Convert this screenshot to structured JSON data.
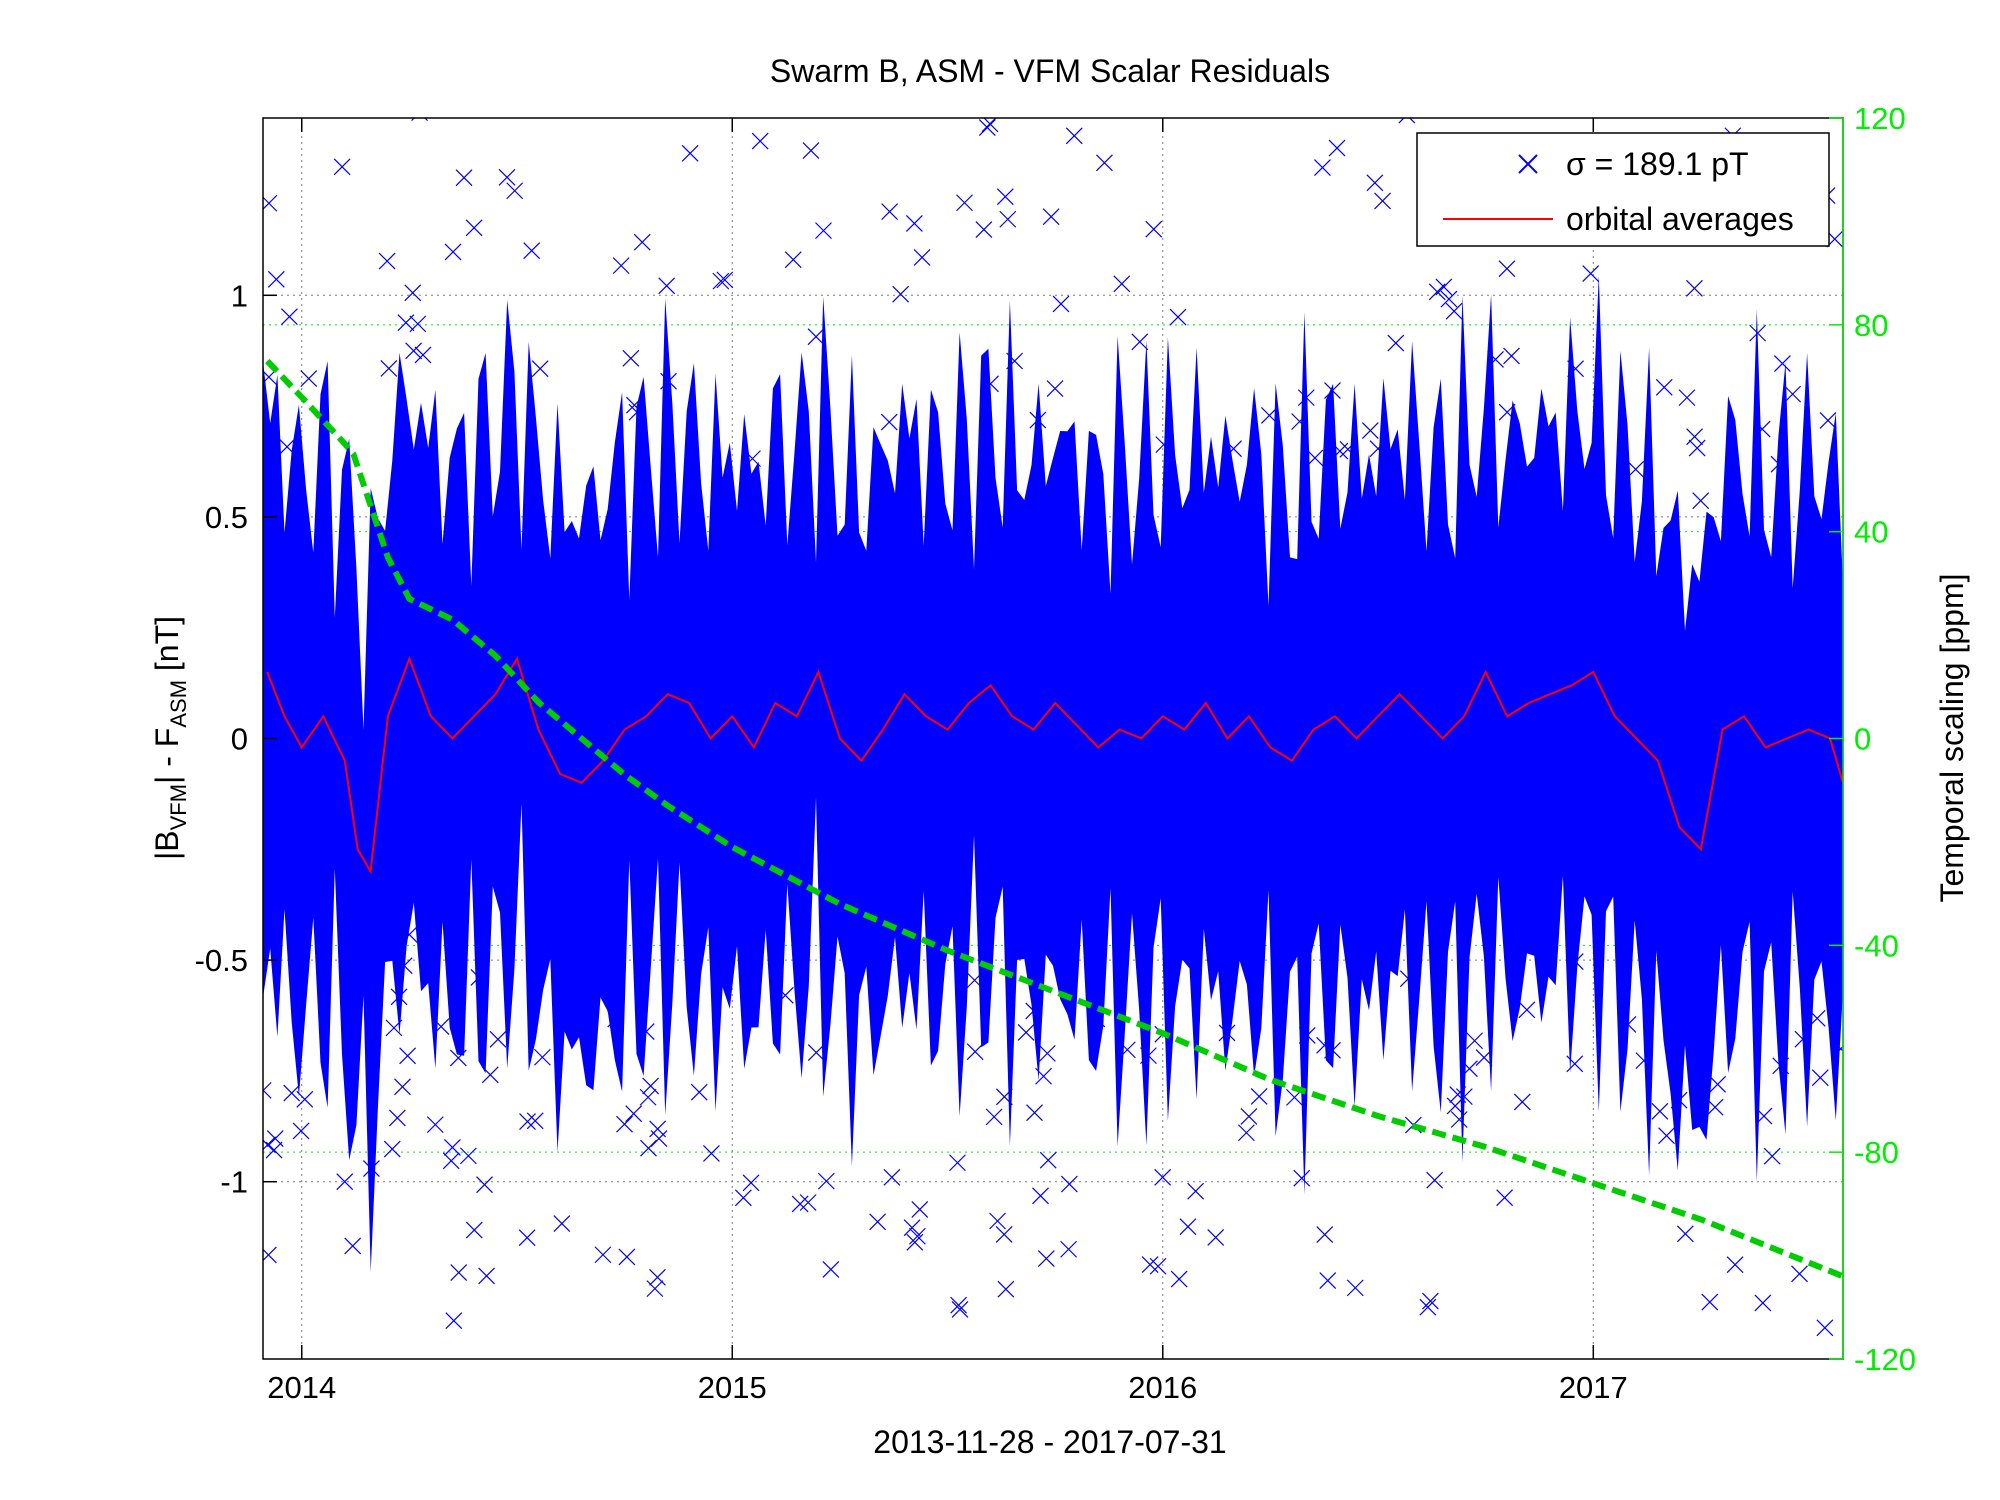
{
  "chart_data": {
    "type": "scatter",
    "title": "Swarm B, ASM - VFM Scalar Residuals",
    "xlabel": "2013-11-28 - 2017-07-31",
    "ylabel": {
      "pre": "|B",
      "sub1": "VFM",
      "mid": "| - F",
      "sub2": "ASM",
      "post": " [nT]"
    },
    "y2label": "Temporal scaling [ppm]",
    "xlim": [
      2013.91,
      2017.58
    ],
    "ylim": [
      -1.4,
      1.4
    ],
    "y2lim": [
      -120,
      120
    ],
    "x_ticks": [
      2014,
      2015,
      2016,
      2017
    ],
    "x_tick_labels": [
      "2014",
      "2015",
      "2016",
      "2017"
    ],
    "y_ticks": [
      -1,
      -0.5,
      0,
      0.5,
      1
    ],
    "y_tick_labels": [
      "-1",
      "-0.5",
      "0",
      "0.5",
      "1"
    ],
    "y2_ticks": [
      -120,
      -80,
      -40,
      0,
      40,
      80,
      120
    ],
    "y2_tick_labels": [
      "-120",
      "-80",
      "-40",
      "0",
      "40",
      "80",
      "120"
    ],
    "grid": true,
    "legend_position": "top-right",
    "series": [
      {
        "name": "σ = 189.1 pT",
        "kind": "scatter",
        "marker": "x",
        "color": "#0000ff",
        "sigma_nT": 0.1891
      },
      {
        "name": "orbital averages",
        "kind": "line",
        "color": "#ff0000",
        "x": [
          2013.92,
          2013.96,
          2014.0,
          2014.05,
          2014.1,
          2014.13,
          2014.16,
          2014.2,
          2014.25,
          2014.3,
          2014.35,
          2014.4,
          2014.45,
          2014.5,
          2014.55,
          2014.6,
          2014.65,
          2014.7,
          2014.75,
          2014.8,
          2014.85,
          2014.9,
          2014.95,
          2015.0,
          2015.05,
          2015.1,
          2015.15,
          2015.2,
          2015.25,
          2015.3,
          2015.35,
          2015.4,
          2015.45,
          2015.5,
          2015.55,
          2015.6,
          2015.65,
          2015.7,
          2015.75,
          2015.8,
          2015.85,
          2015.9,
          2015.95,
          2016.0,
          2016.05,
          2016.1,
          2016.15,
          2016.2,
          2016.25,
          2016.3,
          2016.35,
          2016.4,
          2016.45,
          2016.5,
          2016.55,
          2016.6,
          2016.65,
          2016.7,
          2016.75,
          2016.8,
          2016.85,
          2016.9,
          2016.95,
          2017.0,
          2017.05,
          2017.1,
          2017.15,
          2017.2,
          2017.25,
          2017.3,
          2017.35,
          2017.4,
          2017.45,
          2017.5,
          2017.55,
          2017.58
        ],
        "y": [
          0.15,
          0.05,
          -0.02,
          0.05,
          -0.05,
          -0.25,
          -0.3,
          0.05,
          0.18,
          0.05,
          0.0,
          0.05,
          0.1,
          0.18,
          0.02,
          -0.08,
          -0.1,
          -0.05,
          0.02,
          0.05,
          0.1,
          0.08,
          0.0,
          0.05,
          -0.02,
          0.08,
          0.05,
          0.15,
          0.0,
          -0.05,
          0.02,
          0.1,
          0.05,
          0.02,
          0.08,
          0.12,
          0.05,
          0.02,
          0.08,
          0.03,
          -0.02,
          0.02,
          0.0,
          0.05,
          0.02,
          0.08,
          0.0,
          0.05,
          -0.02,
          -0.05,
          0.02,
          0.05,
          0.0,
          0.05,
          0.1,
          0.05,
          0.0,
          0.05,
          0.15,
          0.05,
          0.08,
          0.1,
          0.12,
          0.15,
          0.05,
          0.0,
          -0.05,
          -0.2,
          -0.25,
          0.02,
          0.05,
          -0.02,
          0.0,
          0.02,
          0.0,
          -0.1
        ]
      },
      {
        "name": "Temporal scaling",
        "kind": "line",
        "axis": "right",
        "color": "#00cc00",
        "dash": true,
        "x": [
          2013.92,
          2014.0,
          2014.1,
          2014.12,
          2014.2,
          2014.25,
          2014.35,
          2014.45,
          2014.55,
          2014.65,
          2014.75,
          2014.85,
          2015.0,
          2015.25,
          2015.5,
          2015.75,
          2016.0,
          2016.25,
          2016.5,
          2016.75,
          2017.0,
          2017.25,
          2017.58
        ],
        "y": [
          73,
          66,
          57,
          55,
          35,
          27,
          23,
          16,
          7,
          0,
          -7,
          -13,
          -21,
          -32,
          -41,
          -49,
          -57,
          -66,
          -73,
          -79,
          -86,
          -93,
          -104
        ]
      }
    ]
  },
  "legend": {
    "scatter_label": "σ = 189.1 pT",
    "line_label": "orbital averages"
  },
  "colors": {
    "scatter": "#0000ff",
    "averages": "#ff0000",
    "scaling": "#00cc00",
    "right_axis": "#00ee00"
  }
}
